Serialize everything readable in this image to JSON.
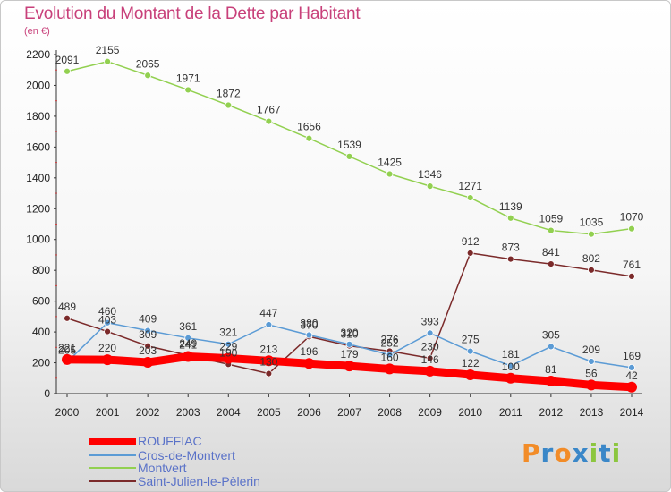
{
  "header": {
    "title": "Evolution du Montant de la Dette par Habitant",
    "unit": "(en €)"
  },
  "chart_data": {
    "type": "line",
    "title": "Evolution du Montant de la Dette par Habitant",
    "subtitle": "(en €)",
    "x": [
      2000,
      2001,
      2002,
      2003,
      2004,
      2005,
      2006,
      2007,
      2008,
      2009,
      2010,
      2011,
      2012,
      2013,
      2014
    ],
    "ylim": [
      0,
      2200
    ],
    "yticks": [
      0,
      200,
      400,
      600,
      800,
      1000,
      1200,
      1400,
      1600,
      1800,
      2000,
      2200
    ],
    "grid": false,
    "legend_position": "bottom-left",
    "series": [
      {
        "name": "ROUFFIAC",
        "color": "#ff0000",
        "values": [
          221,
          220,
          203,
          241,
          229,
          213,
          196,
          179,
          160,
          146,
          122,
          100,
          81,
          56,
          42
        ]
      },
      {
        "name": "Cros-de-Montvert",
        "color": "#5b9bd5",
        "values": [
          205,
          460,
          409,
          361,
          321,
          447,
          380,
          320,
          252,
          393,
          275,
          181,
          305,
          209,
          169
        ]
      },
      {
        "name": "Montvert",
        "color": "#92d050",
        "values": [
          2091,
          2155,
          2065,
          1971,
          1872,
          1767,
          1656,
          1539,
          1425,
          1346,
          1271,
          1139,
          1059,
          1035,
          1070
        ]
      },
      {
        "name": "Saint-Julien-le-Pèlerin",
        "color": "#7b2a2a",
        "values": [
          489,
          403,
          309,
          249,
          190,
          130,
          370,
          310,
          276,
          230,
          912,
          873,
          841,
          802,
          761
        ]
      }
    ]
  },
  "legend": {
    "items": [
      {
        "label": "ROUFFIAC",
        "color": "#ff0000"
      },
      {
        "label": "Cros-de-Montvert",
        "color": "#5b9bd5"
      },
      {
        "label": "Montvert",
        "color": "#92d050"
      },
      {
        "label": "Saint-Julien-le-Pèlerin",
        "color": "#7b2a2a"
      }
    ]
  },
  "logo": {
    "text": "Proxiti"
  }
}
